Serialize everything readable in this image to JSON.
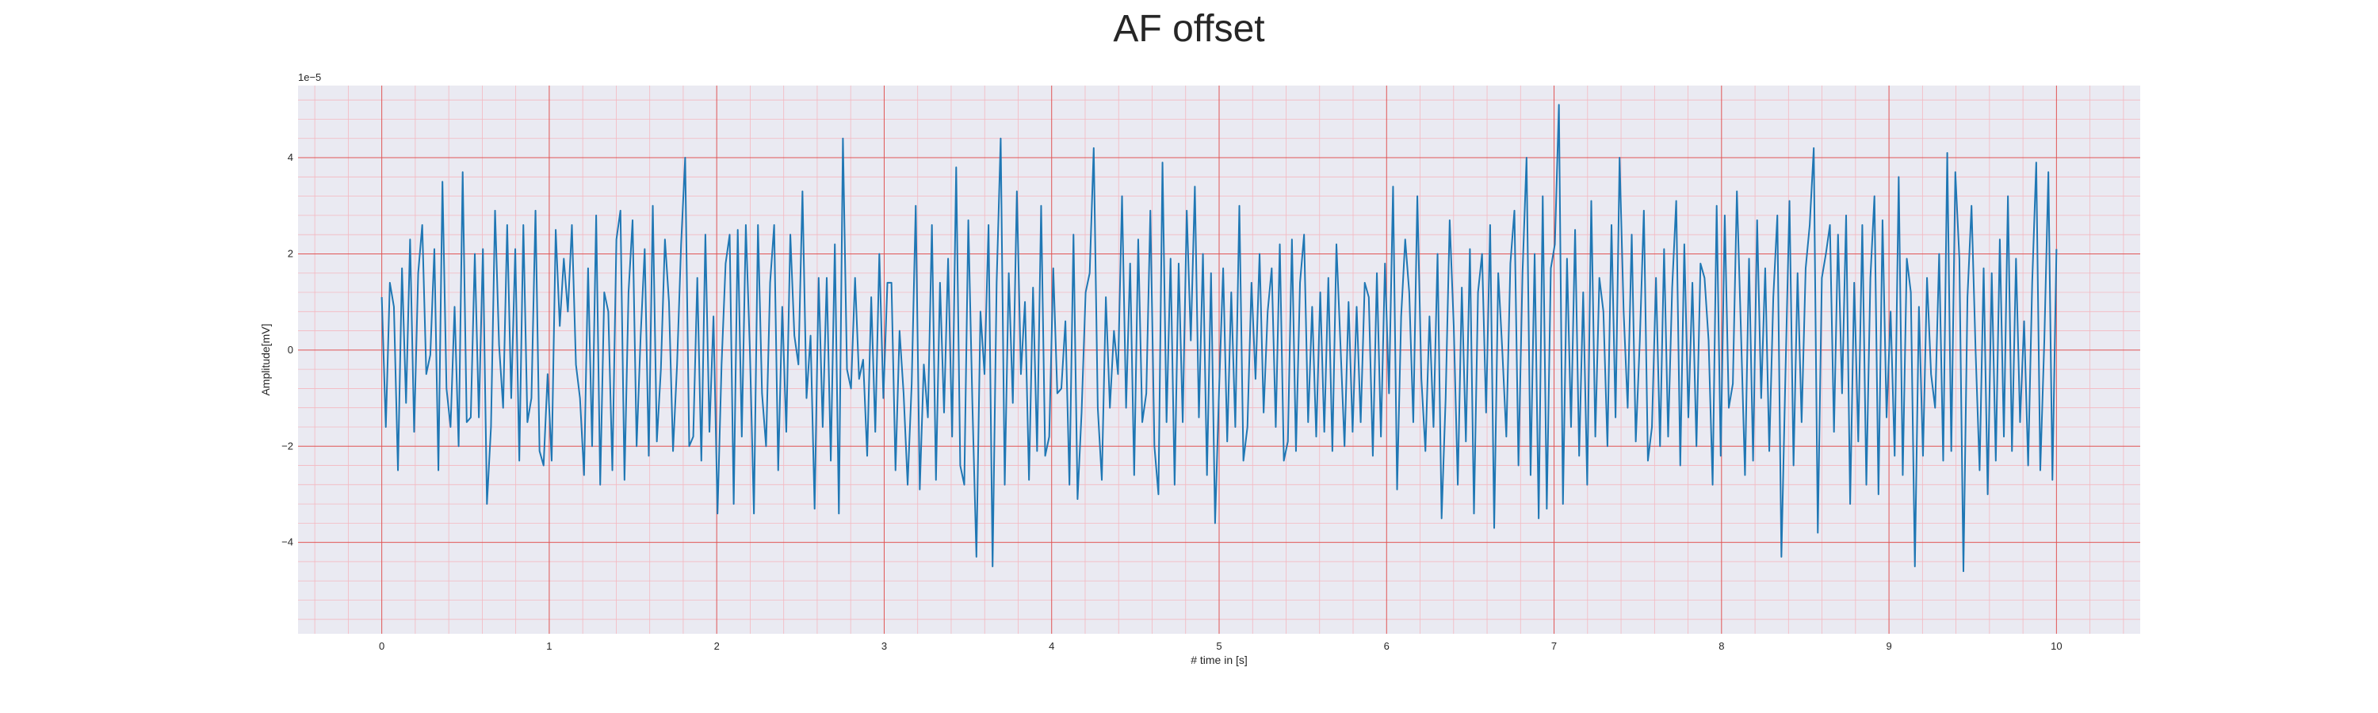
{
  "chart_data": {
    "type": "line",
    "title": "AF offset",
    "xlabel": "# time in [s]",
    "ylabel": "Amplitude[mV]",
    "y_exponent_label": "1e−5",
    "xlim": [
      -0.5,
      10.5
    ],
    "ylim": [
      -5.9,
      5.5
    ],
    "x_ticks": [
      0,
      1,
      2,
      3,
      4,
      5,
      6,
      7,
      8,
      9,
      10
    ],
    "y_ticks": [
      -4,
      -2,
      0,
      2,
      4
    ],
    "x_tick_labels": [
      "0",
      "1",
      "2",
      "3",
      "4",
      "5",
      "6",
      "7",
      "8",
      "9",
      "10"
    ],
    "y_tick_labels": [
      "−4",
      "−2",
      "0",
      "2",
      "4"
    ],
    "grid": true,
    "minor_grid": true,
    "colors": {
      "background": "#eaeaf2",
      "major_grid": "#e05555",
      "minor_grid": "#f4b8c0",
      "line": "#1f77b4",
      "text": "#262626"
    },
    "series": [
      {
        "x_start": 0,
        "x_end": 10,
        "values": [
          1.1,
          -1.6,
          1.4,
          0.9,
          -2.5,
          1.7,
          -1.1,
          2.3,
          -1.7,
          1.6,
          2.6,
          -0.5,
          -0.1,
          2.1,
          -2.5,
          3.5,
          -0.8,
          -1.6,
          0.9,
          -2.0,
          3.7,
          -1.5,
          -1.4,
          2.0,
          -1.4,
          2.1,
          -3.2,
          -1.6,
          2.9,
          0.1,
          -1.2,
          2.6,
          -1.0,
          2.1,
          -2.3,
          2.6,
          -1.5,
          -1.0,
          2.9,
          -2.1,
          -2.4,
          -0.5,
          -2.3,
          2.5,
          0.5,
          1.9,
          0.8,
          2.6,
          -0.3,
          -1.0,
          -2.6,
          1.7,
          -2.0,
          2.8,
          -2.8,
          1.2,
          0.8,
          -2.5,
          2.3,
          2.9,
          -2.7,
          1.2,
          2.7,
          -2.0,
          0.3,
          2.1,
          -2.2,
          3.0,
          -1.9,
          -0.4,
          2.3,
          1.0,
          -2.1,
          -0.3,
          2.2,
          4.0,
          -2.0,
          -1.8,
          1.5,
          -2.3,
          2.4,
          -1.7,
          0.7,
          -3.4,
          -0.3,
          1.8,
          2.4,
          -3.2,
          2.5,
          -1.8,
          2.6,
          0.0,
          -3.4,
          2.6,
          -0.9,
          -2.0,
          1.4,
          2.6,
          -2.5,
          0.9,
          -1.7,
          2.4,
          0.3,
          -0.3,
          3.3,
          -1.0,
          0.3,
          -3.3,
          1.5,
          -1.6,
          1.5,
          -2.3,
          2.2,
          -3.4,
          4.4,
          -0.4,
          -0.8,
          1.5,
          -0.6,
          -0.2,
          -2.2,
          1.1,
          -1.7,
          2.0,
          -1.0,
          1.4,
          1.4,
          -2.5,
          0.4,
          -0.9,
          -2.8,
          -0.7,
          3.0,
          -2.9,
          -0.3,
          -1.4,
          2.6,
          -2.7,
          1.4,
          -1.3,
          1.9,
          -1.8,
          3.8,
          -2.4,
          -2.8,
          2.7,
          -1.1,
          -4.3,
          0.8,
          -0.5,
          2.6,
          -4.5,
          1.4,
          4.4,
          -2.8,
          1.6,
          -1.1,
          3.3,
          -0.5,
          1.0,
          -2.7,
          1.3,
          -2.1,
          3.0,
          -2.2,
          -1.8,
          1.7,
          -0.9,
          -0.8,
          0.6,
          -2.8,
          2.4,
          -3.1,
          -1.3,
          1.2,
          1.6,
          4.2,
          -1.2,
          -2.7,
          1.1,
          -1.2,
          0.4,
          -0.5,
          3.2,
          -1.2,
          1.8,
          -2.6,
          2.3,
          -1.5,
          -0.9,
          2.9,
          -2.0,
          -3.0,
          3.9,
          -1.5,
          1.9,
          -2.8,
          1.8,
          -1.5,
          2.9,
          0.2,
          3.4,
          -1.4,
          2.0,
          -2.6,
          1.6,
          -3.6,
          -0.8,
          1.7,
          -1.9,
          1.2,
          -1.6,
          3.0,
          -2.3,
          -1.6,
          1.4,
          -0.6,
          2.0,
          -1.3,
          0.8,
          1.7,
          -1.6,
          2.2,
          -2.3,
          -1.9,
          2.3,
          -2.1,
          1.4,
          2.4,
          -1.5,
          0.9,
          -1.8,
          1.2,
          -1.7,
          1.5,
          -2.1,
          2.2,
          0.1,
          -2.0,
          1.0,
          -1.7,
          0.9,
          -1.5,
          1.4,
          1.1,
          -2.2,
          1.6,
          -1.8,
          1.8,
          -0.9,
          3.4,
          -2.9,
          0.7,
          2.3,
          1.2,
          -1.5,
          3.2,
          -0.6,
          -2.1,
          0.7,
          -1.6,
          2.0,
          -3.5,
          -1.0,
          2.7,
          0.5,
          -2.8,
          1.3,
          -1.9,
          2.1,
          -3.4,
          1.2,
          2.0,
          -1.3,
          2.6,
          -3.7,
          1.6,
          0.0,
          -1.8,
          1.8,
          2.9,
          -2.4,
          1.6,
          4.0,
          -2.6,
          2.0,
          -3.5,
          3.2,
          -3.3,
          1.7,
          2.2,
          5.1,
          -3.2,
          1.9,
          -1.6,
          2.5,
          -2.2,
          1.2,
          -2.8,
          3.1,
          -1.8,
          1.5,
          0.8,
          -2.0,
          2.6,
          -1.4,
          4.0,
          0.8,
          -1.2,
          2.4,
          -1.9,
          0.2,
          2.9,
          -2.3,
          -1.6,
          1.5,
          -2.0,
          2.1,
          -1.8,
          1.3,
          3.1,
          -2.4,
          2.2,
          -1.4,
          1.4,
          -2.0,
          1.8,
          1.5,
          0.2,
          -2.8,
          3.0,
          -2.2,
          2.8,
          -1.2,
          -0.7,
          3.3,
          0.4,
          -2.6,
          1.9,
          -2.3,
          2.7,
          -1.0,
          1.7,
          -2.1,
          1.1,
          2.8,
          -4.3,
          -0.5,
          3.1,
          -2.4,
          1.6,
          -1.5,
          1.7,
          2.6,
          4.2,
          -3.8,
          1.5,
          2.0,
          2.6,
          -1.7,
          2.4,
          -0.9,
          2.8,
          -3.2,
          1.4,
          -1.9,
          2.6,
          -2.8,
          1.5,
          3.2,
          -3.0,
          2.7,
          -1.4,
          0.8,
          -2.2,
          3.6,
          -2.6,
          1.9,
          1.2,
          -4.5,
          0.9,
          -2.2,
          1.5,
          -0.5,
          -1.2,
          2.0,
          -2.3,
          4.1,
          -2.1,
          3.7,
          1.9,
          -4.6,
          1.1,
          3.0,
          0.0,
          -2.5,
          1.7,
          -3.0,
          1.6,
          -2.3,
          2.3,
          -1.8,
          3.2,
          -2.1,
          1.9,
          -1.5,
          0.6,
          -2.4,
          1.4,
          3.9,
          -2.5,
          0.2,
          3.7,
          -2.7,
          2.1
        ]
      }
    ]
  }
}
